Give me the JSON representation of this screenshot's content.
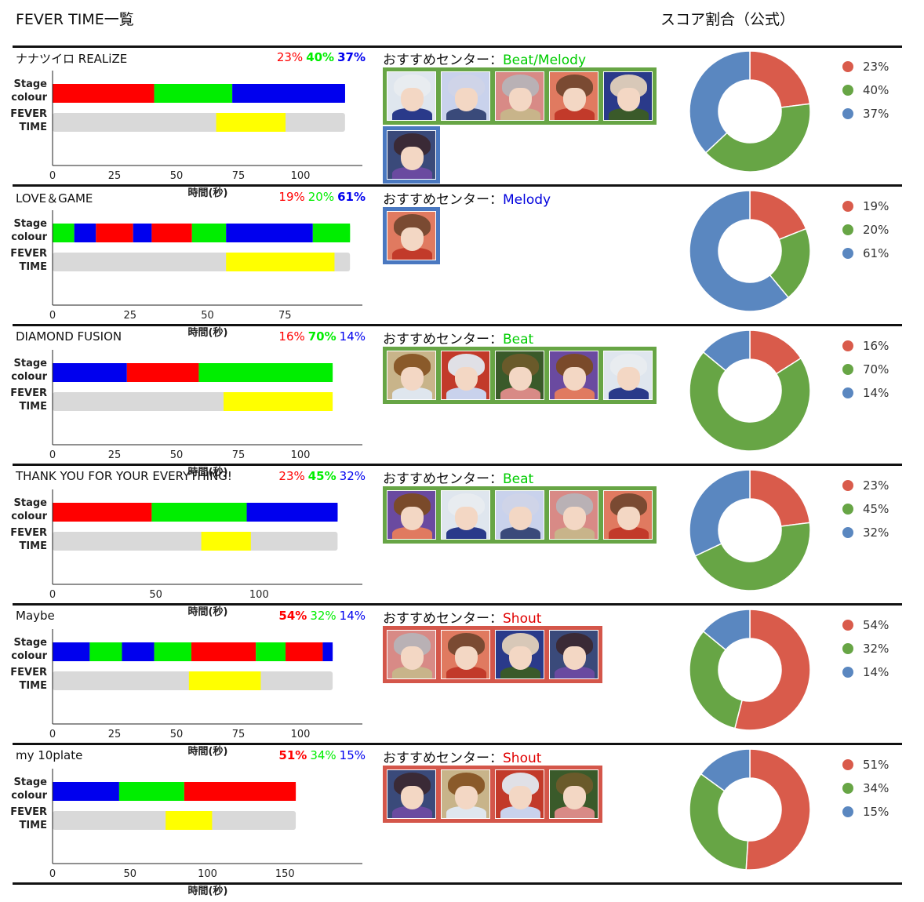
{
  "header": {
    "left_title": "FEVER TIME一覧",
    "right_title": "スコア割合（公式）"
  },
  "labels": {
    "stage": "Stage",
    "colour": "colour",
    "fever": "FEVER",
    "time": "TIME",
    "xlabel": "時間(秒)",
    "center_prefix": "おすすめセンター："
  },
  "colors": {
    "red": "#ff0000",
    "green": "#00ee00",
    "blue": "#0000ee",
    "fever_bg": "#d9d9d9",
    "fever": "#ffff00",
    "donut_red": "#d95b4b",
    "donut_green": "#67a545",
    "donut_blue": "#5a87c0",
    "group_beat": "#67a545",
    "group_melody": "#4a78c0",
    "group_shout": "#d4564a",
    "center_beat": "#00cc00",
    "center_melody": "#0000dd",
    "center_shout": "#e00000"
  },
  "chart_data": [
    {
      "type": "bar",
      "song": "ナナツイロ REALiZE",
      "pct_labels": [
        "23%",
        "40%",
        "37%"
      ],
      "pct_bold": [
        false,
        true,
        true
      ],
      "stage_segments": [
        {
          "color": "red",
          "start": 0,
          "end": 41
        },
        {
          "color": "green",
          "start": 41,
          "end": 72.5
        },
        {
          "color": "blue",
          "start": 72.5,
          "end": 118
        }
      ],
      "fever": {
        "start": 66,
        "end": 94
      },
      "total": 118,
      "xmax": 125,
      "xticks": [
        0,
        25,
        50,
        75,
        100
      ],
      "center_label": "Beat/Melody",
      "center_color": "center_beat",
      "card_groups": [
        {
          "color": "group_beat",
          "count": 5
        },
        {
          "color": "group_melody",
          "count": 1
        }
      ],
      "score": [
        23,
        40,
        37
      ],
      "legend_labels": [
        "23%",
        "40%",
        "37%"
      ]
    },
    {
      "type": "bar",
      "song": "LOVE＆GAME",
      "pct_labels": [
        "19%",
        "20%",
        "61%"
      ],
      "pct_bold": [
        false,
        false,
        true
      ],
      "stage_segments": [
        {
          "color": "green",
          "start": 0,
          "end": 7
        },
        {
          "color": "blue",
          "start": 7,
          "end": 14
        },
        {
          "color": "red",
          "start": 14,
          "end": 26
        },
        {
          "color": "blue",
          "start": 26,
          "end": 32
        },
        {
          "color": "red",
          "start": 32,
          "end": 45
        },
        {
          "color": "green",
          "start": 45,
          "end": 56
        },
        {
          "color": "blue",
          "start": 56,
          "end": 84
        },
        {
          "color": "green",
          "start": 84,
          "end": 96
        }
      ],
      "fever": {
        "start": 56,
        "end": 91
      },
      "total": 96,
      "xmax": 100,
      "xticks": [
        0,
        25,
        50,
        75
      ],
      "center_label": "Melody",
      "center_color": "center_melody",
      "card_groups": [
        {
          "color": "group_melody",
          "count": 1
        }
      ],
      "score": [
        19,
        20,
        61
      ],
      "legend_labels": [
        "19%",
        "20%",
        "61%"
      ]
    },
    {
      "type": "bar",
      "song": "DIAMOND FUSION",
      "pct_labels": [
        "16%",
        "70%",
        "14%"
      ],
      "pct_bold": [
        false,
        true,
        false
      ],
      "stage_segments": [
        {
          "color": "blue",
          "start": 0,
          "end": 30
        },
        {
          "color": "red",
          "start": 30,
          "end": 59
        },
        {
          "color": "green",
          "start": 59,
          "end": 113
        }
      ],
      "fever": {
        "start": 69,
        "end": 113
      },
      "total": 113,
      "xmax": 125,
      "xticks": [
        0,
        25,
        50,
        75,
        100
      ],
      "center_label": "Beat",
      "center_color": "center_beat",
      "card_groups": [
        {
          "color": "group_beat",
          "count": 5
        }
      ],
      "score": [
        16,
        70,
        14
      ],
      "legend_labels": [
        "16%",
        "70%",
        "14%"
      ]
    },
    {
      "type": "bar",
      "song": "THANK YOU FOR YOUR EVERYTHING!",
      "pct_labels": [
        "23%",
        "45%",
        "32%"
      ],
      "pct_bold": [
        false,
        true,
        false
      ],
      "stage_segments": [
        {
          "color": "red",
          "start": 0,
          "end": 48
        },
        {
          "color": "green",
          "start": 48,
          "end": 94
        },
        {
          "color": "blue",
          "start": 94,
          "end": 138
        }
      ],
      "fever": {
        "start": 72,
        "end": 96
      },
      "total": 138,
      "xmax": 150,
      "xticks": [
        0,
        50,
        100
      ],
      "center_label": "Beat",
      "center_color": "center_beat",
      "card_groups": [
        {
          "color": "group_beat",
          "count": 5
        }
      ],
      "score": [
        23,
        45,
        32
      ],
      "legend_labels": [
        "23%",
        "45%",
        "32%"
      ]
    },
    {
      "type": "bar",
      "song": "Maybe",
      "pct_labels": [
        "54%",
        "32%",
        "14%"
      ],
      "pct_bold": [
        true,
        false,
        false
      ],
      "stage_segments": [
        {
          "color": "blue",
          "start": 0,
          "end": 15
        },
        {
          "color": "green",
          "start": 15,
          "end": 28
        },
        {
          "color": "blue",
          "start": 28,
          "end": 41
        },
        {
          "color": "green",
          "start": 41,
          "end": 56
        },
        {
          "color": "red",
          "start": 56,
          "end": 82
        },
        {
          "color": "green",
          "start": 82,
          "end": 94
        },
        {
          "color": "red",
          "start": 94,
          "end": 109
        },
        {
          "color": "blue",
          "start": 109,
          "end": 113
        }
      ],
      "fever": {
        "start": 55,
        "end": 84
      },
      "total": 113,
      "xmax": 125,
      "xticks": [
        0,
        25,
        50,
        75,
        100
      ],
      "center_label": "Shout",
      "center_color": "center_shout",
      "card_groups": [
        {
          "color": "group_shout",
          "count": 4
        }
      ],
      "score": [
        54,
        32,
        14
      ],
      "legend_labels": [
        "54%",
        "32%",
        "14%"
      ]
    },
    {
      "type": "bar",
      "song": "my 10plate",
      "pct_labels": [
        "51%",
        "34%",
        "15%"
      ],
      "pct_bold": [
        true,
        false,
        false
      ],
      "stage_segments": [
        {
          "color": "blue",
          "start": 0,
          "end": 43
        },
        {
          "color": "green",
          "start": 43,
          "end": 85
        },
        {
          "color": "red",
          "start": 85,
          "end": 157
        }
      ],
      "fever": {
        "start": 73,
        "end": 103
      },
      "total": 157,
      "xmax": 200,
      "xticks": [
        0,
        50,
        100,
        150
      ],
      "center_label": "Shout",
      "center_color": "center_shout",
      "card_groups": [
        {
          "color": "group_shout",
          "count": 4
        }
      ],
      "score": [
        51,
        34,
        15
      ],
      "legend_labels": [
        "51%",
        "34%",
        "15%"
      ]
    }
  ]
}
